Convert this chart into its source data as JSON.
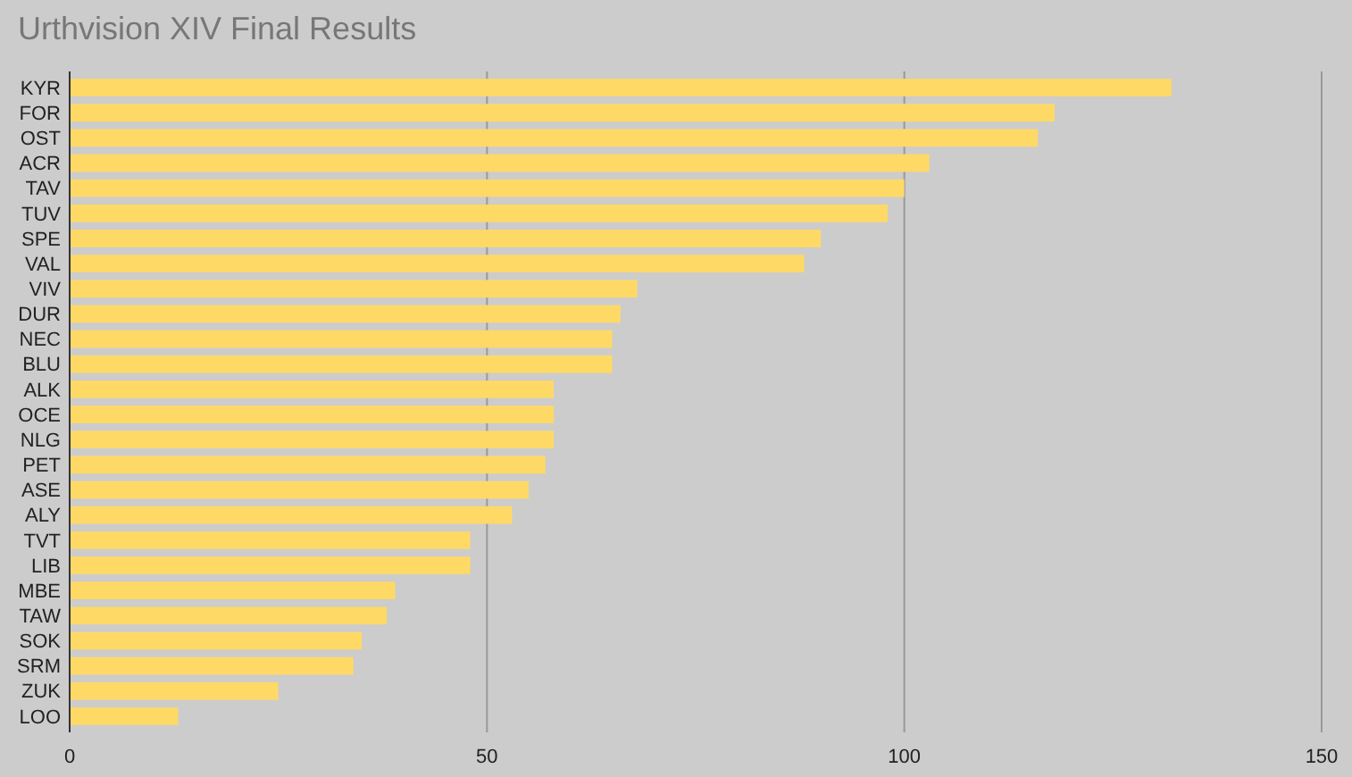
{
  "chart_data": {
    "type": "bar",
    "orientation": "horizontal",
    "title": "Urthvision XIV Final Results",
    "categories": [
      "KYR",
      "FOR",
      "OST",
      "ACR",
      "TAV",
      "TUV",
      "SPE",
      "VAL",
      "VIV",
      "DUR",
      "NEC",
      "BLU",
      "ALK",
      "OCE",
      "NLG",
      "PET",
      "ASE",
      "ALY",
      "TVT",
      "LIB",
      "MBE",
      "TAW",
      "SOK",
      "SRM",
      "ZUK",
      "LOO"
    ],
    "values": [
      132,
      118,
      116,
      103,
      100,
      98,
      90,
      88,
      68,
      66,
      65,
      65,
      58,
      58,
      58,
      57,
      55,
      53,
      48,
      48,
      39,
      38,
      35,
      34,
      25,
      13
    ],
    "color": "#ffd966",
    "xlim": [
      0,
      150
    ],
    "xticks": [
      0,
      50,
      100,
      150
    ],
    "grid": "x"
  }
}
